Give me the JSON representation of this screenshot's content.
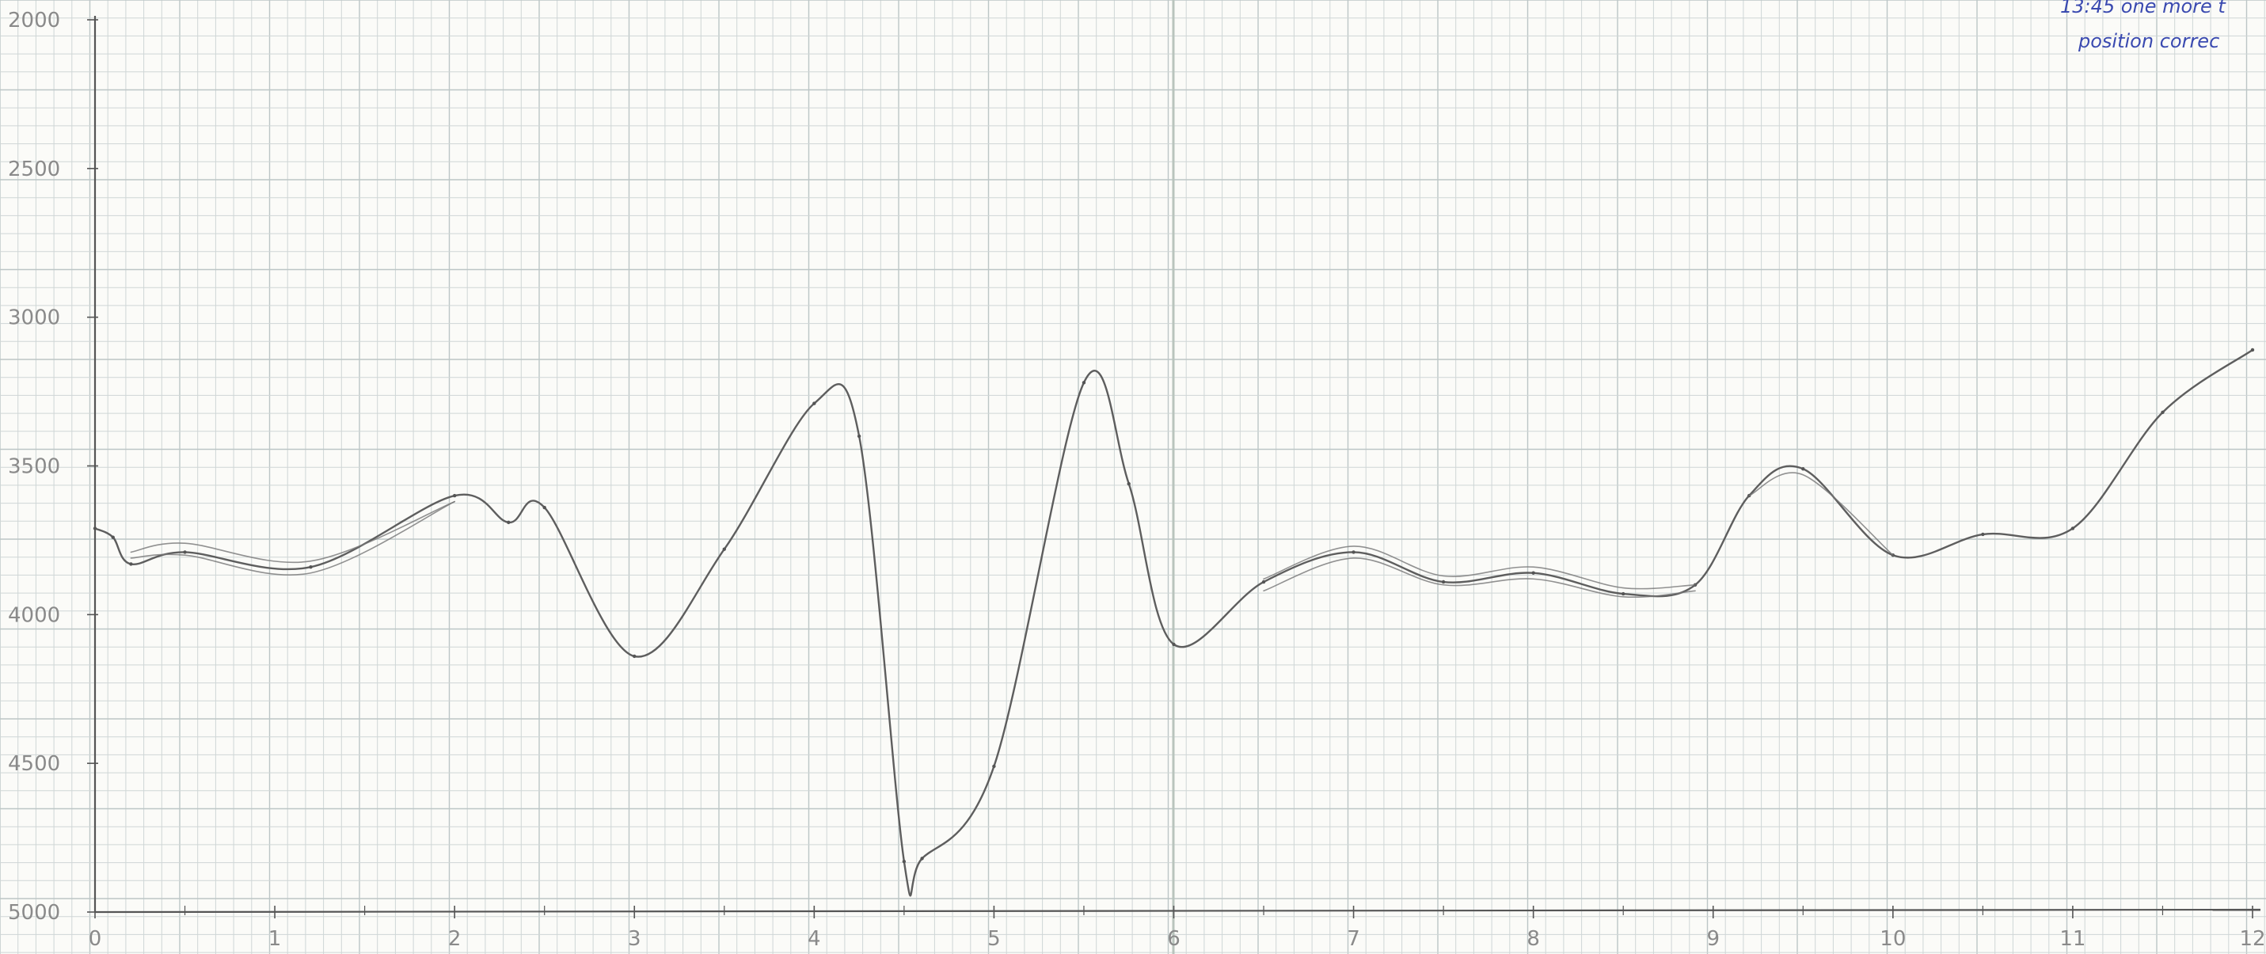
{
  "chart_data": {
    "type": "line",
    "title": "",
    "xlabel": "",
    "ylabel": "",
    "xlim": [
      0,
      12
    ],
    "ylim": [
      2000,
      5000
    ],
    "y_inverted": true,
    "grid": true,
    "x_ticks": [
      {
        "value": 0,
        "label": "0"
      },
      {
        "value": 1,
        "label": "1"
      },
      {
        "value": 2,
        "label": "2"
      },
      {
        "value": 3,
        "label": "3"
      },
      {
        "value": 4,
        "label": "4"
      },
      {
        "value": 5,
        "label": "5"
      },
      {
        "value": 6,
        "label": "6"
      },
      {
        "value": 7,
        "label": "7"
      },
      {
        "value": 8,
        "label": "8"
      },
      {
        "value": 9,
        "label": "9"
      },
      {
        "value": 10,
        "label": "10"
      },
      {
        "value": 11,
        "label": "11"
      },
      {
        "value": 12,
        "label": "12"
      }
    ],
    "y_ticks": [
      {
        "value": 2000,
        "label": "2000"
      },
      {
        "value": 2500,
        "label": "2500"
      },
      {
        "value": 3000,
        "label": "3000"
      },
      {
        "value": 3500,
        "label": "3500"
      },
      {
        "value": 4000,
        "label": "4000"
      },
      {
        "value": 4500,
        "label": "4500"
      },
      {
        "value": 5000,
        "label": "5000"
      }
    ],
    "series": [
      {
        "color": "#555555",
        "x": [
          0,
          0.1,
          0.2,
          0.5,
          1.2,
          2.0,
          2.3,
          2.5,
          3.0,
          3.5,
          4.0,
          4.25,
          4.5,
          4.6,
          5.0,
          5.5,
          5.75,
          6.0,
          6.5,
          7.0,
          7.5,
          8.0,
          8.5,
          8.9,
          9.2,
          9.5,
          10.0,
          10.5,
          11.0,
          11.5,
          12.0
        ],
        "y": [
          3710,
          3740,
          3830,
          3790,
          3840,
          3600,
          3690,
          3640,
          4140,
          3780,
          3290,
          3400,
          4830,
          4820,
          4510,
          3220,
          3560,
          4100,
          3890,
          3790,
          3890,
          3860,
          3930,
          3900,
          3600,
          3510,
          3800,
          3730,
          3710,
          3320,
          3110
        ]
      },
      {
        "color": "#777777",
        "x": [
          0.2,
          0.5,
          1.2,
          2.0
        ],
        "y": [
          3790,
          3760,
          3820,
          3620
        ]
      },
      {
        "color": "#777777",
        "x": [
          0.2,
          0.5,
          1.2,
          2.0
        ],
        "y": [
          3810,
          3800,
          3860,
          3620
        ]
      },
      {
        "color": "#777777",
        "x": [
          6.5,
          7.0,
          7.5,
          8.0,
          8.5,
          8.9
        ],
        "y": [
          3920,
          3810,
          3900,
          3880,
          3940,
          3920
        ]
      },
      {
        "color": "#777777",
        "x": [
          6.5,
          7.0,
          7.5,
          8.0,
          8.5,
          8.9
        ],
        "y": [
          3880,
          3770,
          3870,
          3840,
          3910,
          3900
        ]
      },
      {
        "color": "#777777",
        "x": [
          9.2,
          9.5,
          10.0
        ],
        "y": [
          3600,
          3530,
          3800
        ]
      }
    ]
  },
  "note": {
    "line1": "13:45 one more t",
    "line2": "position correc"
  },
  "colors": {
    "paper": "#fbfbf8",
    "grid": "#cfd6d6",
    "grid_major": "#bcc6c6",
    "axis": "#555555",
    "ink_pencil": "#555555",
    "ink_pen": "#3a4ab0"
  }
}
